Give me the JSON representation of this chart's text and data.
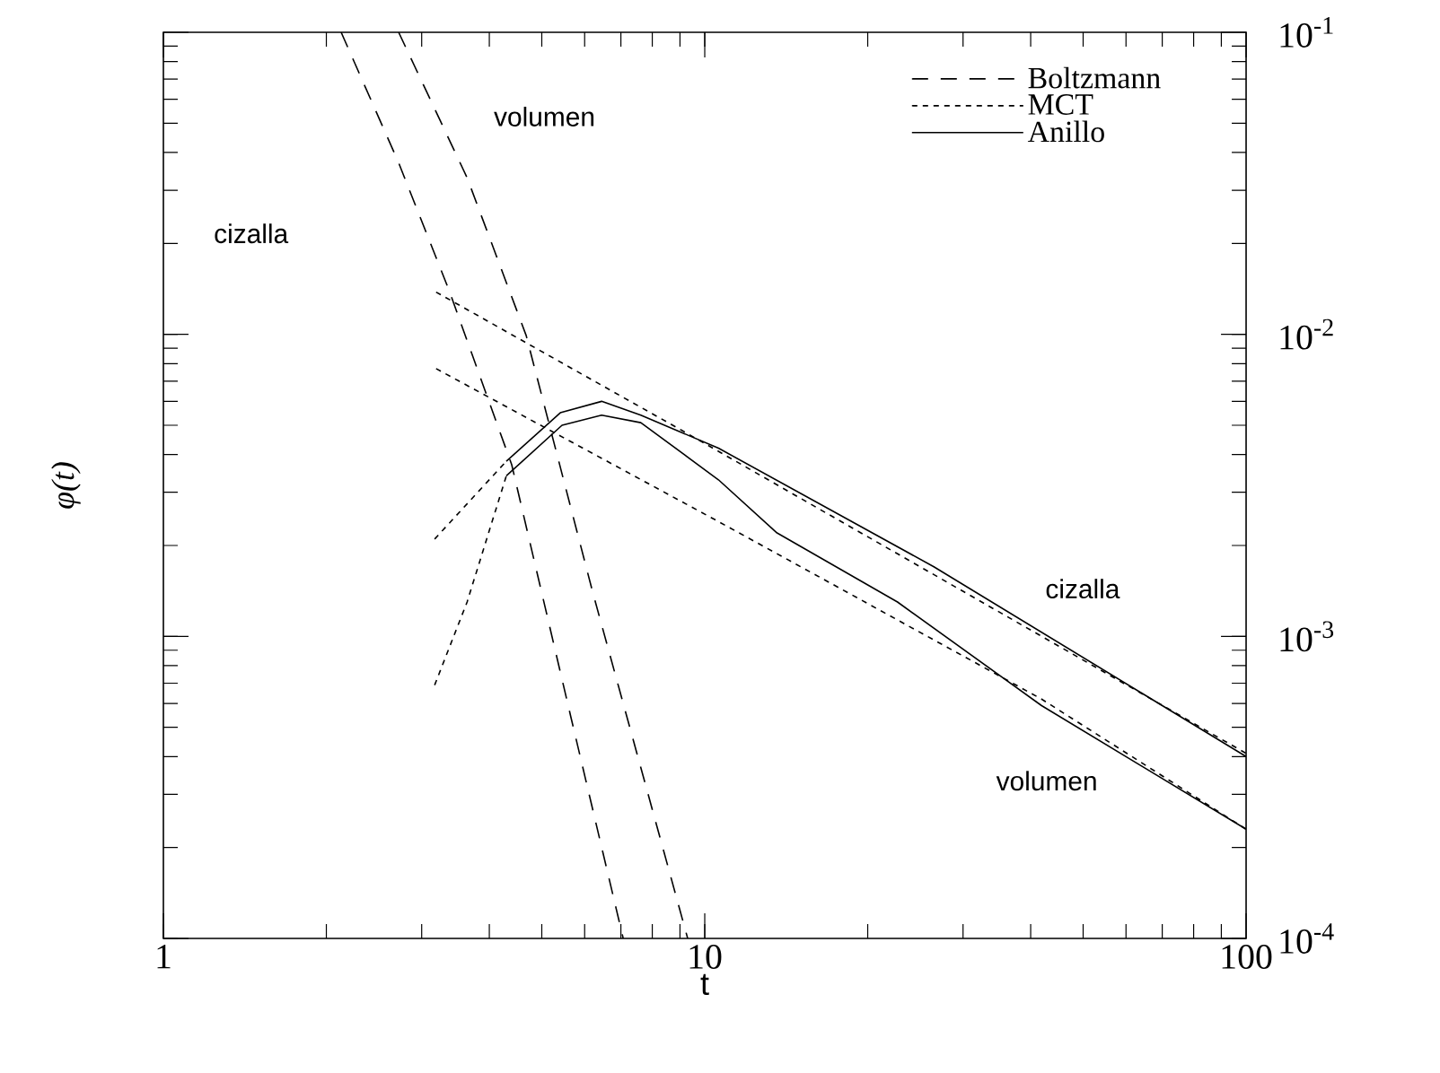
{
  "chart_data": {
    "type": "line",
    "xlabel": "t",
    "ylabel": "φ(t)",
    "log": "xy",
    "xlim": [
      1,
      100
    ],
    "ylim": [
      0.0001,
      0.1
    ],
    "xticks": [
      1,
      10,
      100
    ],
    "yticks": [
      {
        "value": 0.0001,
        "label": "10$^{-4}$"
      },
      {
        "value": 0.001,
        "label": "10$^{-3}$"
      },
      {
        "value": 0.01,
        "label": "10$^{-2}$"
      },
      {
        "value": 0.1,
        "label": "10$^{-1}$"
      }
    ],
    "grid": false,
    "legend": "top right",
    "marker": "none",
    "series": [
      {
        "name": "Boltzmann",
        "color": "#000000",
        "line_style": "dashed",
        "x": [
          2.13,
          2.72,
          3.37,
          4.4,
          5.66,
          7.07
        ],
        "values": [
          0.1,
          0.037,
          0.014,
          0.0037,
          0.00054,
          0.0001
        ]
      },
      {
        "color": "#000000",
        "line_style": "dashed",
        "x": [
          2.72,
          3.64,
          4.68,
          6.21,
          9.3
        ],
        "values": [
          0.1,
          0.033,
          0.0099,
          0.0014,
          0.0001
        ]
      },
      {
        "name": "MCT",
        "color": "#000000",
        "line_style": "dotted",
        "x": [
          3.19,
          9.09,
          100
        ],
        "values": [
          0.0138,
          0.0048,
          0.00041
        ]
      },
      {
        "color": "#000000",
        "line_style": "dotted",
        "x": [
          3.19,
          10.6,
          41.9,
          100
        ],
        "values": [
          0.0077,
          0.0024,
          0.00062,
          0.00023
        ]
      },
      {
        "color": "#000000",
        "line_style": "dotted",
        "x": [
          3.17,
          4.3
        ],
        "values": [
          0.0021,
          0.0038
        ]
      },
      {
        "color": "#000000",
        "line_style": "dotted",
        "x": [
          3.17,
          3.64,
          4.3
        ],
        "values": [
          0.00069,
          0.0013,
          0.0034
        ]
      },
      {
        "name": "Anillo",
        "color": "#000000",
        "line_style": "solid",
        "x": [
          4.3,
          5.41,
          6.45,
          7.62,
          10.6,
          26.5,
          100
        ],
        "values": [
          0.0038,
          0.0055,
          0.006,
          0.0054,
          0.0042,
          0.0017,
          0.0004
        ]
      },
      {
        "color": "#000000",
        "line_style": "solid",
        "x": [
          4.3,
          5.45,
          6.45,
          7.62,
          10.6,
          13.6,
          22.7,
          41.9,
          100
        ],
        "values": [
          0.0034,
          0.005,
          0.0054,
          0.0051,
          0.0033,
          0.0022,
          0.0013,
          0.00059,
          0.00023
        ]
      }
    ],
    "annotations": [
      "cizalla",
      "volumen",
      "cizalla",
      "volumen"
    ]
  }
}
